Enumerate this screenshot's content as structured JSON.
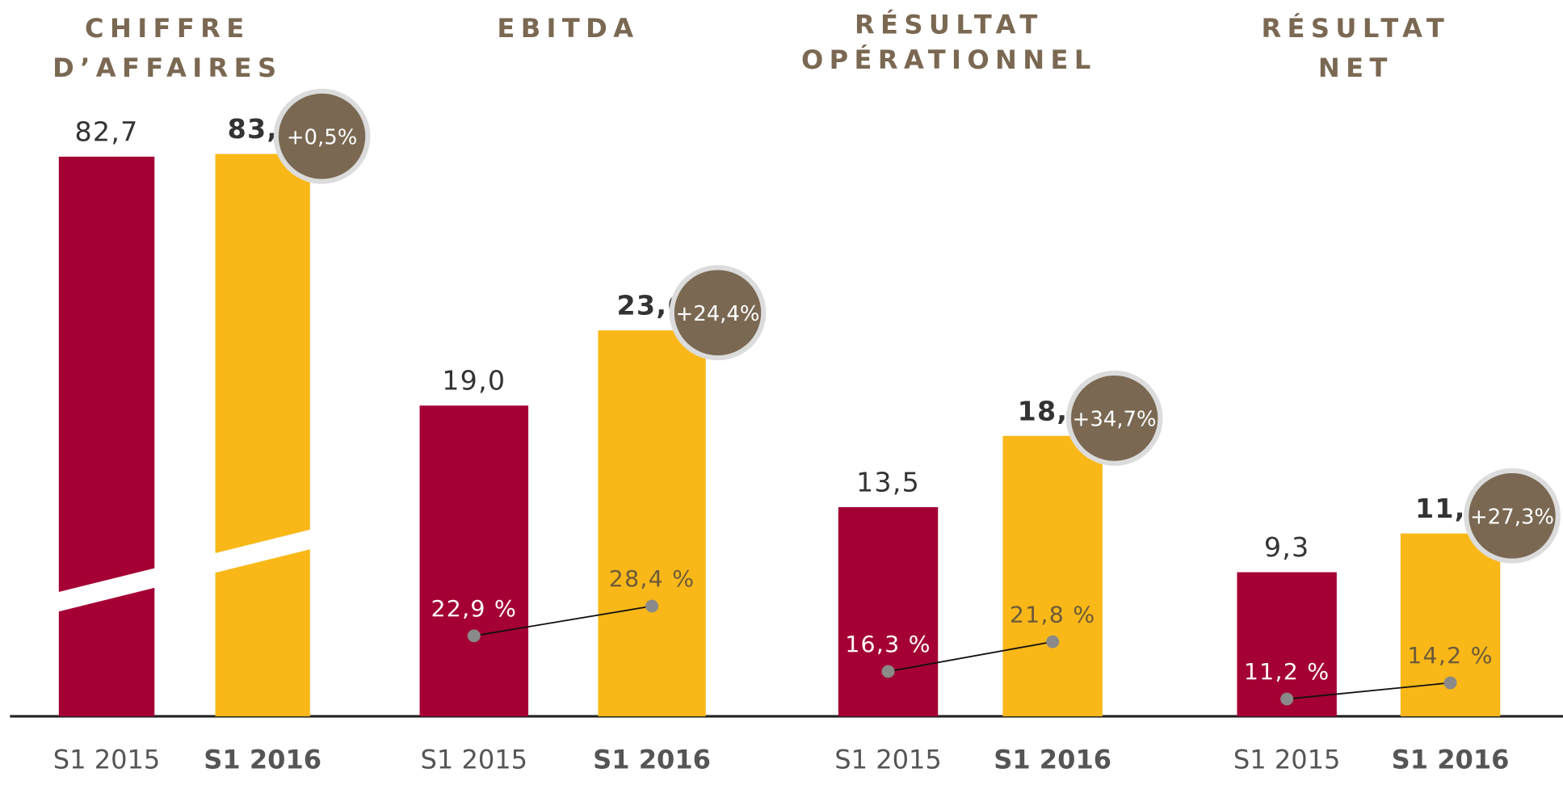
{
  "chart_data": [
    {
      "type": "bar",
      "title": [
        "CHIFFRE",
        "D’AFFAIRES"
      ],
      "categories": [
        "S1 2015",
        "S1 2016"
      ],
      "values": [
        82.7,
        83.1
      ],
      "value_labels": [
        "82,7",
        "83,1"
      ],
      "change": "+0,5%",
      "colors": [
        "#a50034",
        "#f9b817"
      ],
      "ylim": [
        0,
        87
      ],
      "axis_break": true
    },
    {
      "type": "bar",
      "title": [
        "EBITDA"
      ],
      "categories": [
        "S1 2015",
        "S1 2016"
      ],
      "values": [
        19.0,
        23.6
      ],
      "value_labels": [
        "19,0",
        "23,6"
      ],
      "change": "+24,4%",
      "colors": [
        "#a50034",
        "#f9b817"
      ],
      "ylim": [
        0,
        36
      ],
      "margins": {
        "values": [
          22.9,
          28.4
        ],
        "value_labels": [
          "22,9 %",
          "28,4 %"
        ],
        "ylim": [
          8,
          117
        ]
      }
    },
    {
      "type": "bar",
      "title": [
        "RÉSULTAT",
        "OPÉRATIONNEL"
      ],
      "categories": [
        "S1 2015",
        "S1 2016"
      ],
      "values": [
        13.5,
        18.1
      ],
      "value_labels": [
        "13,5",
        "18,1"
      ],
      "change": "+34,7%",
      "colors": [
        "#a50034",
        "#f9b817"
      ],
      "ylim": [
        0,
        38
      ],
      "margins": {
        "values": [
          16.3,
          21.8
        ],
        "value_labels": [
          "16,3 %",
          "21,8 %"
        ],
        "ylim": [
          8,
          117
        ]
      }
    },
    {
      "type": "bar",
      "title": [
        "RÉSULTAT",
        "NET"
      ],
      "categories": [
        "S1 2015",
        "S1 2016"
      ],
      "values": [
        9.3,
        11.8
      ],
      "value_labels": [
        "9,3",
        "11,8"
      ],
      "change": "+27,3%",
      "colors": [
        "#a50034",
        "#f9b817"
      ],
      "ylim": [
        0,
        38
      ],
      "margins": {
        "values": [
          11.2,
          14.2
        ],
        "value_labels": [
          "11,2 %",
          "14,2 %"
        ],
        "ylim": [
          8,
          117
        ]
      }
    }
  ]
}
